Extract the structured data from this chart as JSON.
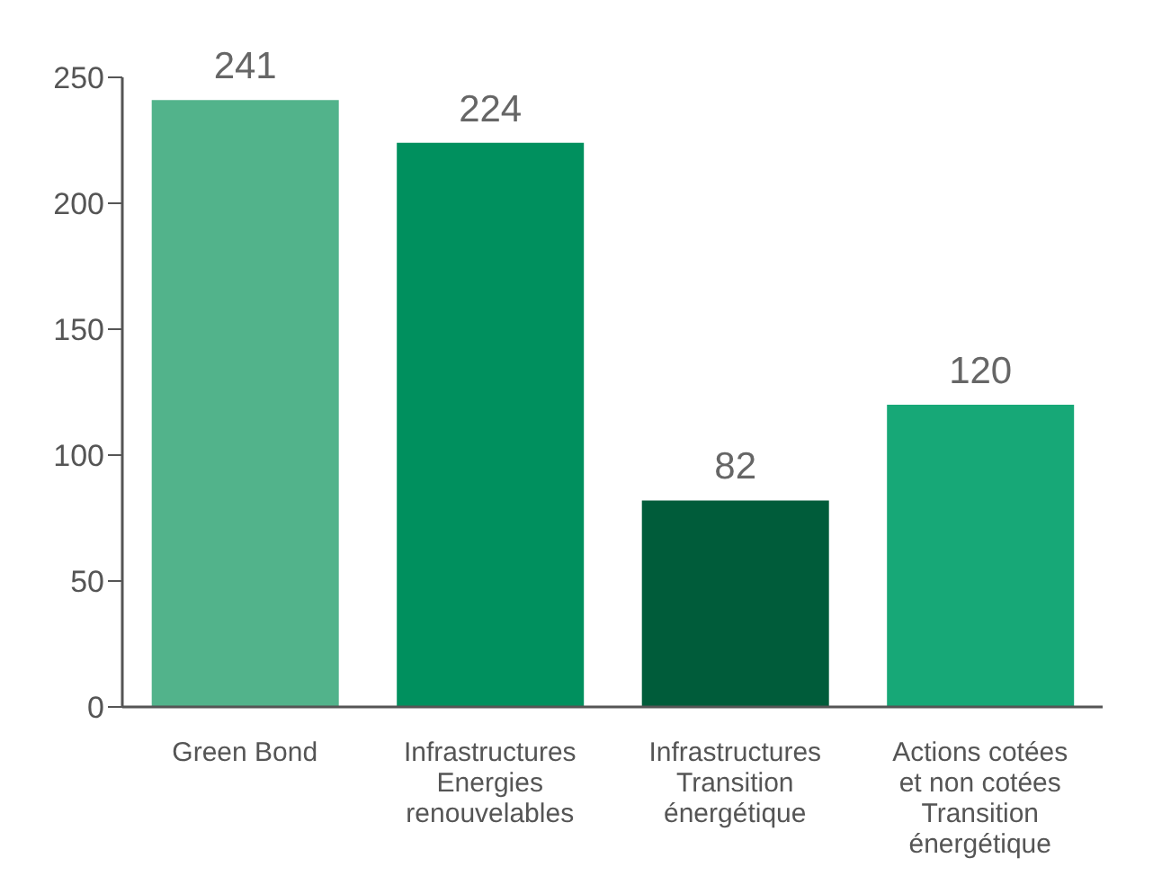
{
  "chart_data": {
    "type": "bar",
    "categories": [
      "Green Bond",
      "Infrastructures\nEnergies\nrenouvelables",
      "Infrastructures\nTransition\nénergétique",
      "Actions cotées\net non cotées\nTransition\nénergétique"
    ],
    "values": [
      241,
      224,
      82,
      120
    ],
    "colors": [
      "#52b38b",
      "#00905e",
      "#005c3a",
      "#17a877"
    ],
    "ylim": [
      0,
      250
    ],
    "yticks": [
      0,
      50,
      100,
      150,
      200,
      250
    ],
    "data_labels": true
  }
}
